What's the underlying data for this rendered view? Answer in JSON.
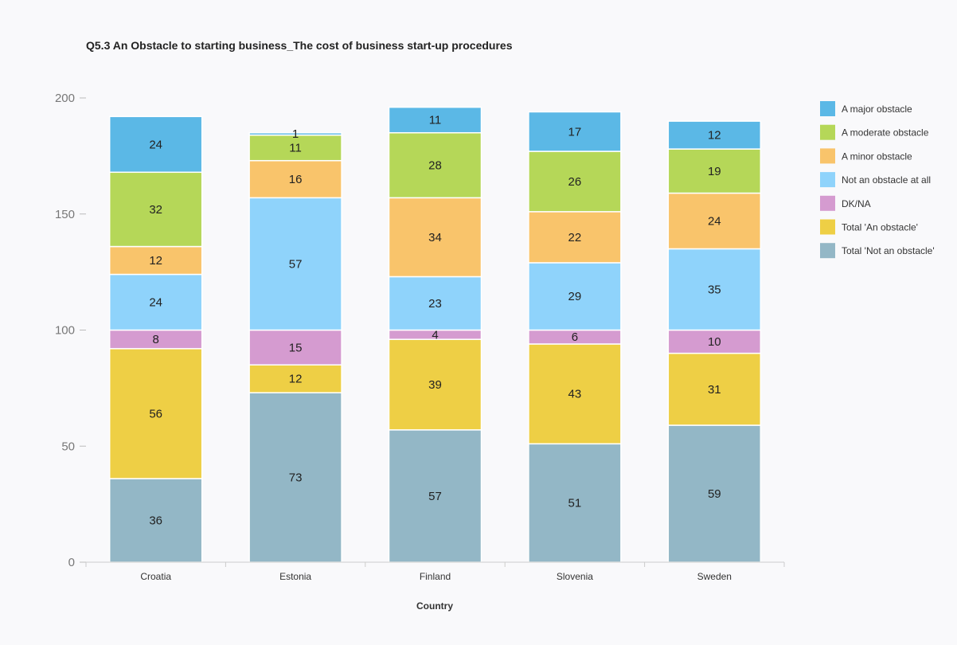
{
  "chart_data": {
    "type": "bar",
    "stacked": true,
    "title": "Q5.3 An Obstacle to starting business_The cost of business start-up procedures",
    "xlabel": "Country",
    "ylabel": "",
    "ylim": [
      0,
      200
    ],
    "yticks": [
      "0",
      "50",
      "100",
      "150",
      "200"
    ],
    "categories": [
      "Croatia",
      "Estonia",
      "Finland",
      "Slovenia",
      "Sweden"
    ],
    "legend_position": "right",
    "grid": false,
    "series": [
      {
        "name": "Total 'Not an obstacle'",
        "color": "#93b7c6",
        "values": [
          36,
          73,
          57,
          51,
          59
        ]
      },
      {
        "name": "Total 'An obstacle'",
        "color": "#eecf45",
        "values": [
          56,
          12,
          39,
          43,
          31
        ]
      },
      {
        "name": "DK/NA",
        "color": "#d59bd0",
        "values": [
          8,
          15,
          4,
          6,
          10
        ]
      },
      {
        "name": "Not an obstacle at all",
        "color": "#8fd3fb",
        "values": [
          24,
          57,
          23,
          29,
          35
        ]
      },
      {
        "name": "A minor obstacle",
        "color": "#f9c46b",
        "values": [
          12,
          16,
          34,
          22,
          24
        ]
      },
      {
        "name": "A moderate obstacle",
        "color": "#b5d758",
        "values": [
          32,
          11,
          28,
          26,
          19
        ]
      },
      {
        "name": "A major obstacle",
        "color": "#5bb8e6",
        "values": [
          24,
          1,
          11,
          17,
          12
        ]
      }
    ],
    "legend_order": [
      "A major obstacle",
      "A moderate obstacle",
      "A minor obstacle",
      "Not an obstacle at all",
      "DK/NA",
      "Total 'An obstacle'",
      "Total 'Not an obstacle'"
    ]
  }
}
